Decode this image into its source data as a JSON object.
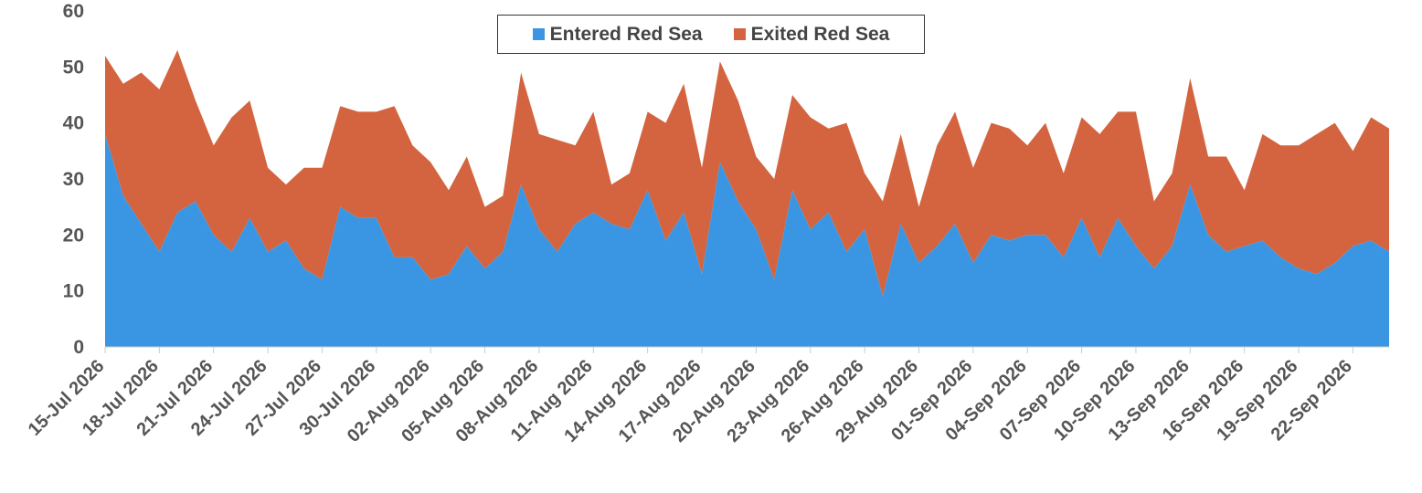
{
  "chart_data": {
    "type": "area",
    "stacked": true,
    "x_start": "15-Jul 2026",
    "x_end": "25-Sep 2026",
    "xtick_labels": [
      "15-Jul 2026",
      "18-Jul 2026",
      "21-Jul 2026",
      "24-Jul 2026",
      "27-Jul 2026",
      "30-Jul 2026",
      "02-Aug 2026",
      "05-Aug 2026",
      "08-Aug 2026",
      "11-Aug 2026",
      "14-Aug 2026",
      "17-Aug 2026",
      "20-Aug 2026",
      "23-Aug 2026",
      "26-Aug 2026",
      "29-Aug 2026",
      "01-Sep 2026",
      "04-Sep 2026",
      "07-Sep 2026",
      "10-Sep 2026",
      "13-Sep 2026",
      "16-Sep 2026",
      "19-Sep 2026",
      "22-Sep 2026"
    ],
    "ylim": [
      0,
      60
    ],
    "yticks": [
      0,
      10,
      20,
      30,
      40,
      50,
      60
    ],
    "legend_position": "top-center",
    "grid": false,
    "series": [
      {
        "name": "Entered Red Sea",
        "color": "#3a96e2",
        "values": [
          38,
          27,
          22,
          17,
          24,
          26,
          20,
          17,
          23,
          17,
          19,
          14,
          12,
          25,
          23,
          23,
          16,
          16,
          12,
          13,
          18,
          14,
          17,
          29,
          21,
          17,
          22,
          24,
          22,
          21,
          28,
          19,
          24,
          13,
          33,
          26,
          21,
          12,
          28,
          21,
          24,
          17,
          21,
          9,
          22,
          15,
          18,
          22,
          15,
          20,
          19,
          20,
          20,
          16,
          23,
          16,
          23,
          18,
          14,
          18,
          29,
          20,
          17,
          18,
          19,
          16,
          14,
          13,
          15,
          18,
          19,
          17
        ]
      },
      {
        "name": "Exited Red Sea",
        "color": "#d4643f",
        "values": [
          14,
          20,
          27,
          29,
          29,
          18,
          16,
          24,
          21,
          15,
          10,
          18,
          20,
          18,
          19,
          19,
          27,
          20,
          21,
          15,
          16,
          11,
          10,
          20,
          17,
          20,
          14,
          18,
          7,
          10,
          14,
          21,
          23,
          19,
          18,
          18,
          13,
          18,
          17,
          20,
          15,
          23,
          10,
          17,
          16,
          10,
          18,
          20,
          17,
          20,
          20,
          16,
          20,
          15,
          18,
          22,
          19,
          24,
          12,
          13,
          19,
          14,
          17,
          10,
          19,
          20,
          22,
          25,
          25,
          17,
          22,
          22
        ]
      }
    ]
  }
}
